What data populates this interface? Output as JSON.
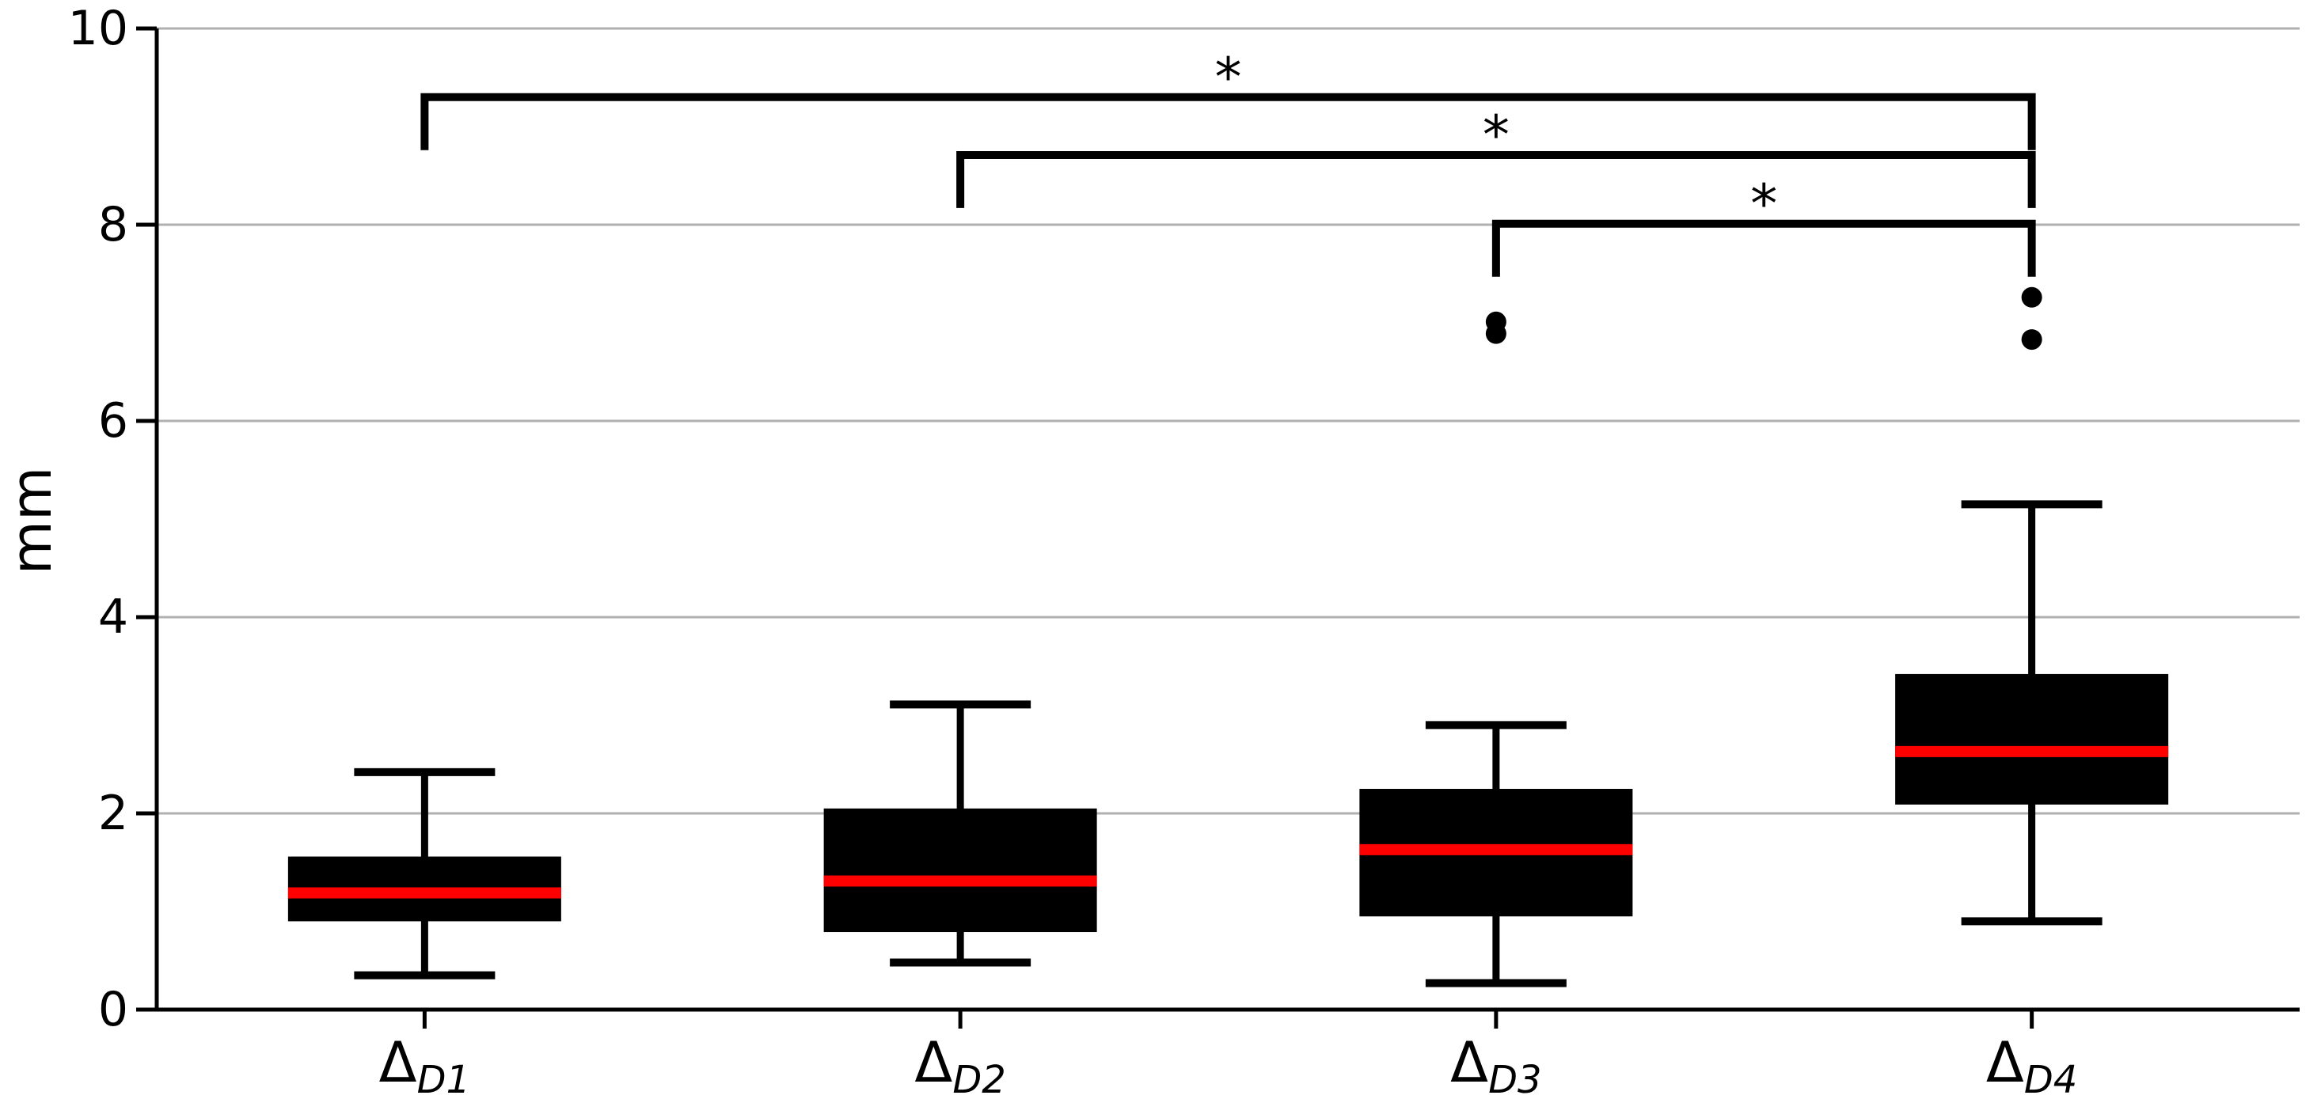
{
  "figure": {
    "background": "#ffffff"
  },
  "chart_data": {
    "type": "boxplot",
    "title": "",
    "xlabel": "",
    "ylabel": "mm",
    "ylim": [
      0,
      10
    ],
    "yticks": [
      0,
      2,
      4,
      6,
      8,
      10
    ],
    "grid": {
      "axis": "y",
      "color": "#b0b0b0",
      "on": true
    },
    "legend": null,
    "categories": [
      {
        "base": "Δ",
        "subscript": "D1",
        "label": "ΔD1"
      },
      {
        "base": "Δ",
        "subscript": "D2",
        "label": "ΔD2"
      },
      {
        "base": "Δ",
        "subscript": "D3",
        "label": "ΔD3"
      },
      {
        "base": "Δ",
        "subscript": "D4",
        "label": "ΔD4"
      }
    ],
    "boxes": [
      {
        "category": "ΔD1",
        "whisker_low": 0.35,
        "q1": 0.9,
        "median": 1.19,
        "q3": 1.56,
        "whisker_high": 2.42,
        "outliers": []
      },
      {
        "category": "ΔD2",
        "whisker_low": 0.48,
        "q1": 0.79,
        "median": 1.31,
        "q3": 2.05,
        "whisker_high": 3.11,
        "outliers": []
      },
      {
        "category": "ΔD3",
        "whisker_low": 0.27,
        "q1": 0.95,
        "median": 1.63,
        "q3": 2.25,
        "whisker_high": 2.9,
        "outliers": [
          6.89,
          7.01
        ]
      },
      {
        "category": "ΔD4",
        "whisker_low": 0.9,
        "q1": 2.09,
        "median": 2.63,
        "q3": 3.42,
        "whisker_high": 5.15,
        "outliers": [
          6.83,
          7.26
        ]
      }
    ],
    "significance_brackets": [
      {
        "from": "ΔD1",
        "to": "ΔD4",
        "from_index": 0,
        "to_index": 3,
        "label": "*",
        "y": 9.3,
        "tick_down": 0.54
      },
      {
        "from": "ΔD2",
        "to": "ΔD4",
        "from_index": 1,
        "to_index": 3,
        "label": "*",
        "y": 8.71,
        "tick_down": 0.54
      },
      {
        "from": "ΔD3",
        "to": "ΔD4",
        "from_index": 2,
        "to_index": 3,
        "label": "*",
        "y": 8.01,
        "tick_down": 0.54
      }
    ],
    "colors": {
      "box_fill": "#000000",
      "median": "#ff0000",
      "whisker": "#000000",
      "outlier": "#000000",
      "grid": "#b0b0b0",
      "axis": "#000000",
      "text": "#000000"
    }
  }
}
